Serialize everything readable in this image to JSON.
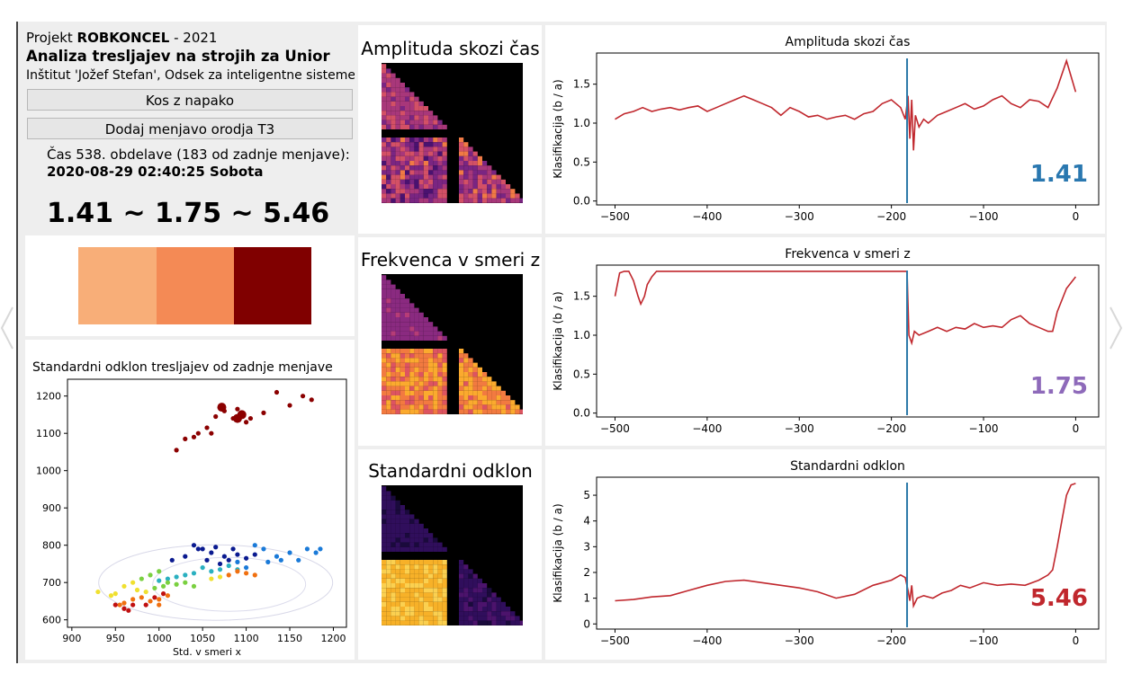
{
  "header": {
    "line1_prefix": "Projekt ",
    "line1_bold": "ROBKONCEL",
    "line1_suffix": " - 2021",
    "title": "Analiza tresljajev na strojih za Unior",
    "institute": "Inštitut 'Jožef Stefan', Odsek za inteligentne sisteme"
  },
  "buttons": {
    "faulty": "Kos z napako",
    "add_change": "Dodaj menjavo orodja T3"
  },
  "status": {
    "line": "Čas 538. obdelave (183 od zadnje menjave):",
    "timestamp": "2020-08-29 02:40:25 Sobota",
    "scores": "1.41 ~ 1.75 ~ 5.46"
  },
  "swatches": [
    "#f8ae78",
    "#f48a55",
    "#800000"
  ],
  "heatmaps": [
    {
      "title": "Amplituda skozi čas"
    },
    {
      "title": "Frekvenca v smeri z"
    },
    {
      "title": "Standardni odklon"
    }
  ],
  "chart_data": [
    {
      "type": "scatter",
      "title": "Standardni odklon tresljajev od zadnje menjave",
      "xlabel": "Std. v smeri x",
      "ylabel": "",
      "xlim": [
        895,
        1215
      ],
      "ylim": [
        580,
        1245
      ],
      "xticks": [
        900,
        950,
        1000,
        1050,
        1100,
        1150,
        1200
      ],
      "yticks": [
        600,
        700,
        800,
        900,
        1000,
        1100,
        1200
      ],
      "clusters": [
        {
          "color": "#8b0000",
          "points": [
            [
              1020,
              1055
            ],
            [
              1030,
              1085
            ],
            [
              1045,
              1100
            ],
            [
              1055,
              1115
            ],
            [
              1065,
              1145
            ],
            [
              1075,
              1160
            ],
            [
              1085,
              1140
            ],
            [
              1095,
              1150
            ],
            [
              1105,
              1140
            ],
            [
              1120,
              1155
            ],
            [
              1135,
              1210
            ],
            [
              1150,
              1175
            ],
            [
              1165,
              1200
            ],
            [
              1175,
              1190
            ],
            [
              1090,
              1165
            ],
            [
              1100,
              1130
            ],
            [
              1060,
              1100
            ],
            [
              1040,
              1090
            ]
          ],
          "big": [
            [
              1072,
              1170
            ],
            [
              1095,
              1150
            ],
            [
              1090,
              1140
            ]
          ]
        },
        {
          "color": "#0a1a90",
          "points": [
            [
              1040,
              800
            ],
            [
              1050,
              790
            ],
            [
              1060,
              780
            ],
            [
              1075,
              770
            ],
            [
              1080,
              760
            ],
            [
              1090,
              775
            ],
            [
              1100,
              765
            ],
            [
              1110,
              775
            ],
            [
              1015,
              760
            ],
            [
              1030,
              770
            ],
            [
              1045,
              790
            ],
            [
              1055,
              760
            ],
            [
              1070,
              750
            ],
            [
              1065,
              795
            ],
            [
              1085,
              790
            ]
          ]
        },
        {
          "color": "#1a7ad8",
          "points": [
            [
              1110,
              800
            ],
            [
              1120,
              790
            ],
            [
              1135,
              770
            ],
            [
              1150,
              780
            ],
            [
              1160,
              760
            ],
            [
              1170,
              790
            ],
            [
              1180,
              780
            ],
            [
              1185,
              790
            ],
            [
              1125,
              755
            ],
            [
              1140,
              760
            ],
            [
              1100,
              740
            ],
            [
              1090,
              755
            ]
          ]
        },
        {
          "color": "#2ab0c0",
          "points": [
            [
              1050,
              740
            ],
            [
              1060,
              730
            ],
            [
              1070,
              735
            ],
            [
              1080,
              745
            ],
            [
              1040,
              725
            ],
            [
              1030,
              720
            ],
            [
              1020,
              715
            ],
            [
              1010,
              710
            ],
            [
              1000,
              705
            ],
            [
              1090,
              735
            ]
          ]
        },
        {
          "color": "#7ad040",
          "points": [
            [
              990,
              720
            ],
            [
              1000,
              730
            ],
            [
              1010,
              700
            ],
            [
              1020,
              695
            ],
            [
              1030,
              700
            ],
            [
              1040,
              690
            ],
            [
              980,
              710
            ],
            [
              995,
              685
            ],
            [
              1005,
              690
            ]
          ]
        },
        {
          "color": "#f0e030",
          "points": [
            [
              960,
              690
            ],
            [
              970,
              700
            ],
            [
              975,
              680
            ],
            [
              985,
              675
            ],
            [
              950,
              670
            ],
            [
              945,
              665
            ],
            [
              930,
              675
            ],
            [
              1060,
              710
            ],
            [
              1070,
              715
            ]
          ]
        },
        {
          "color": "#f07010",
          "points": [
            [
              980,
              660
            ],
            [
              990,
              650
            ],
            [
              1000,
              655
            ],
            [
              1010,
              665
            ],
            [
              970,
              655
            ],
            [
              960,
              645
            ],
            [
              955,
              640
            ],
            [
              1080,
              720
            ],
            [
              1090,
              730
            ],
            [
              1100,
              725
            ],
            [
              1110,
              720
            ],
            [
              1000,
              640
            ]
          ]
        },
        {
          "color": "#c01010",
          "points": [
            [
              960,
              630
            ],
            [
              965,
              625
            ],
            [
              950,
              640
            ],
            [
              970,
              640
            ],
            [
              985,
              640
            ],
            [
              995,
              660
            ],
            [
              1005,
              670
            ]
          ]
        }
      ]
    },
    {
      "type": "line",
      "title": "Amplituda skozi čas",
      "ylabel": "Klasifikacija (b / a)",
      "xlim": [
        -520,
        25
      ],
      "ylim": [
        -0.05,
        1.9
      ],
      "xticks": [
        -500,
        -400,
        -300,
        -200,
        -100,
        0
      ],
      "yticks": [
        0.0,
        0.5,
        1.0,
        1.5
      ],
      "ytick_labels": [
        "0.0",
        "0.5",
        "1.0",
        "1.5"
      ],
      "vline": -183,
      "value_label": "1.41",
      "value_color": "#2a78b0",
      "series": [
        {
          "color": "#c0272d",
          "x": [
            -500,
            -490,
            -480,
            -470,
            -460,
            -450,
            -440,
            -430,
            -420,
            -410,
            -400,
            -390,
            -380,
            -370,
            -360,
            -350,
            -340,
            -330,
            -320,
            -310,
            -300,
            -290,
            -280,
            -270,
            -260,
            -250,
            -240,
            -230,
            -220,
            -210,
            -200,
            -190,
            -185,
            -182,
            -180,
            -178,
            -176,
            -174,
            -170,
            -165,
            -160,
            -150,
            -140,
            -130,
            -120,
            -110,
            -100,
            -90,
            -80,
            -70,
            -60,
            -50,
            -40,
            -30,
            -20,
            -10,
            -5,
            0
          ],
          "y": [
            1.05,
            1.12,
            1.15,
            1.2,
            1.15,
            1.18,
            1.2,
            1.17,
            1.2,
            1.22,
            1.15,
            1.2,
            1.25,
            1.3,
            1.35,
            1.3,
            1.25,
            1.2,
            1.1,
            1.2,
            1.15,
            1.08,
            1.1,
            1.05,
            1.08,
            1.1,
            1.05,
            1.12,
            1.15,
            1.25,
            1.3,
            1.2,
            1.05,
            1.35,
            0.8,
            1.3,
            0.65,
            1.1,
            0.95,
            1.05,
            1.0,
            1.1,
            1.15,
            1.2,
            1.25,
            1.18,
            1.22,
            1.3,
            1.35,
            1.25,
            1.2,
            1.3,
            1.28,
            1.2,
            1.45,
            1.8,
            1.6,
            1.4
          ]
        }
      ]
    },
    {
      "type": "line",
      "title": "Frekvenca v smeri z",
      "ylabel": "Klasifikacija (b / a)",
      "xlim": [
        -520,
        25
      ],
      "ylim": [
        -0.05,
        1.9
      ],
      "xticks": [
        -500,
        -400,
        -300,
        -200,
        -100,
        0
      ],
      "yticks": [
        0.0,
        0.5,
        1.0,
        1.5
      ],
      "ytick_labels": [
        "0.0",
        "0.5",
        "1.0",
        "1.5"
      ],
      "vline": -183,
      "value_label": "1.75",
      "value_color": "#8e6aba",
      "series": [
        {
          "color": "#c0272d",
          "x": [
            -500,
            -495,
            -490,
            -485,
            -480,
            -475,
            -472,
            -468,
            -465,
            -460,
            -455,
            -450,
            -440,
            -400,
            -350,
            -300,
            -250,
            -220,
            -200,
            -190,
            -185,
            -183,
            -181,
            -178,
            -175,
            -170,
            -160,
            -150,
            -140,
            -130,
            -120,
            -110,
            -100,
            -90,
            -80,
            -70,
            -60,
            -50,
            -40,
            -30,
            -25,
            -20,
            -10,
            0
          ],
          "y": [
            1.5,
            1.8,
            1.82,
            1.82,
            1.7,
            1.5,
            1.4,
            1.5,
            1.65,
            1.75,
            1.82,
            1.82,
            1.82,
            1.82,
            1.82,
            1.82,
            1.82,
            1.82,
            1.82,
            1.82,
            1.82,
            1.82,
            1.0,
            0.9,
            1.05,
            1.0,
            1.05,
            1.1,
            1.05,
            1.1,
            1.08,
            1.15,
            1.1,
            1.12,
            1.1,
            1.2,
            1.25,
            1.15,
            1.1,
            1.05,
            1.05,
            1.3,
            1.6,
            1.75
          ]
        }
      ]
    },
    {
      "type": "line",
      "title": "Standardni odklon",
      "ylabel": "Klasifikacija (b / a)",
      "xlim": [
        -520,
        25
      ],
      "ylim": [
        -0.2,
        5.7
      ],
      "xticks": [
        -500,
        -400,
        -300,
        -200,
        -100,
        0
      ],
      "yticks": [
        0,
        1,
        2,
        3,
        4,
        5
      ],
      "ytick_labels": [
        "0",
        "1",
        "2",
        "3",
        "4",
        "5"
      ],
      "vline": -183,
      "value_label": "5.46",
      "value_color": "#c0272d",
      "series": [
        {
          "color": "#c0272d",
          "x": [
            -500,
            -480,
            -460,
            -440,
            -420,
            -400,
            -380,
            -360,
            -340,
            -320,
            -300,
            -280,
            -260,
            -240,
            -220,
            -200,
            -190,
            -185,
            -182,
            -180,
            -178,
            -176,
            -172,
            -165,
            -155,
            -145,
            -135,
            -125,
            -115,
            -100,
            -85,
            -70,
            -55,
            -40,
            -30,
            -25,
            -20,
            -15,
            -10,
            -5,
            0
          ],
          "y": [
            0.9,
            0.95,
            1.05,
            1.1,
            1.3,
            1.5,
            1.65,
            1.7,
            1.6,
            1.5,
            1.4,
            1.25,
            1.0,
            1.15,
            1.5,
            1.7,
            1.9,
            1.8,
            1.3,
            0.9,
            1.5,
            0.7,
            1.0,
            1.1,
            1.0,
            1.2,
            1.3,
            1.5,
            1.4,
            1.6,
            1.5,
            1.55,
            1.5,
            1.7,
            1.9,
            2.1,
            3.0,
            4.0,
            5.0,
            5.4,
            5.46
          ]
        }
      ]
    }
  ]
}
